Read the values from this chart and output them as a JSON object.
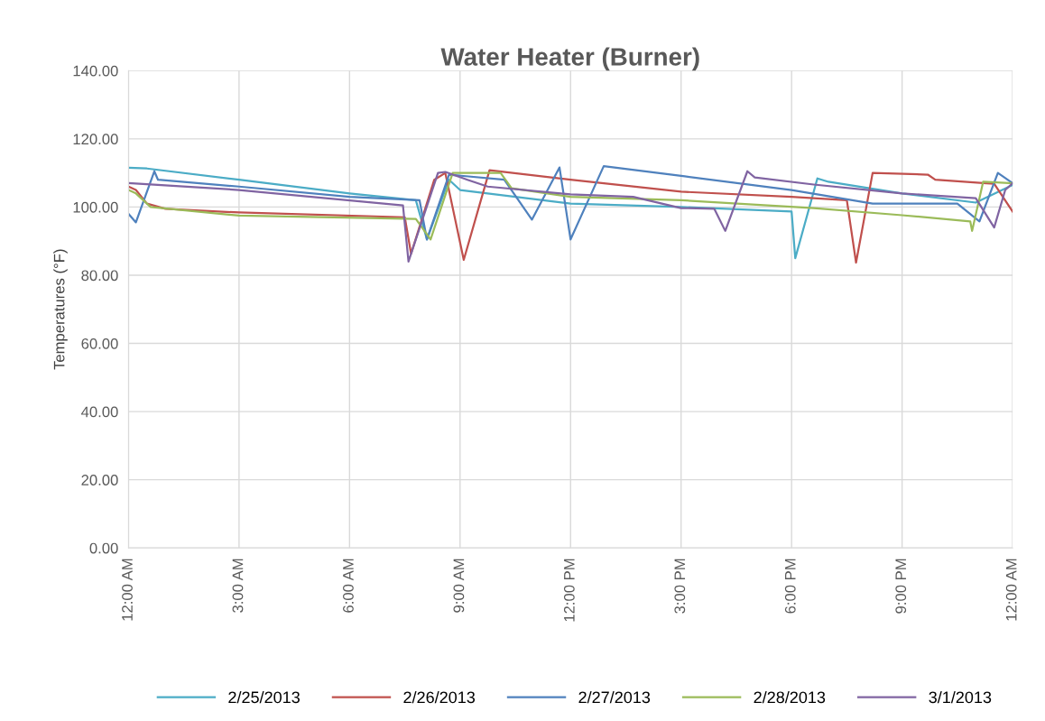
{
  "chart_data": {
    "type": "line",
    "title": "Water Heater (Burner)",
    "ylabel": "Temperatures (°F)",
    "xlim": [
      0,
      24
    ],
    "xticks": [
      {
        "value": 0,
        "label": "12:00 AM"
      },
      {
        "value": 3,
        "label": "3:00 AM"
      },
      {
        "value": 6,
        "label": "6:00 AM"
      },
      {
        "value": 9,
        "label": "9:00 AM"
      },
      {
        "value": 12,
        "label": "12:00 PM"
      },
      {
        "value": 15,
        "label": "3:00 PM"
      },
      {
        "value": 18,
        "label": "6:00 PM"
      },
      {
        "value": 21,
        "label": "9:00 PM"
      },
      {
        "value": 24,
        "label": "12:00 AM"
      }
    ],
    "ylim": [
      0,
      140
    ],
    "yticks": [
      {
        "value": 0,
        "label": "0.00"
      },
      {
        "value": 20,
        "label": "20.00"
      },
      {
        "value": 40,
        "label": "40.00"
      },
      {
        "value": 60,
        "label": "60.00"
      },
      {
        "value": 80,
        "label": "80.00"
      },
      {
        "value": 100,
        "label": "100.00"
      },
      {
        "value": 120,
        "label": "120.00"
      },
      {
        "value": 140,
        "label": "140.00"
      }
    ],
    "grid": true,
    "legend": "bottom",
    "marker": "none",
    "line_style": "solid",
    "series": [
      {
        "name": "2/25/2013",
        "color": "#4bacc6",
        "x": [
          0,
          0.5,
          3,
          6,
          7.8,
          8.1,
          8.7,
          9,
          12,
          15,
          18,
          18.1,
          18.7,
          19,
          21,
          23,
          24
        ],
        "values": [
          111.5,
          111.3,
          108,
          104,
          102,
          90.5,
          108,
          105,
          101,
          100,
          98.7,
          85,
          108.4,
          107.4,
          104,
          101.3,
          106.5
        ]
      },
      {
        "name": "2/26/2013",
        "color": "#c0504d",
        "x": [
          0,
          0.2,
          0.5,
          1,
          3,
          7.5,
          7.67,
          8.3,
          8.6,
          9.1,
          9.8,
          12,
          15,
          18,
          19.5,
          19.75,
          20.2,
          21.7,
          21.9,
          23.2,
          23.5,
          24
        ],
        "values": [
          106,
          105,
          101,
          99.5,
          98.4,
          97,
          86.3,
          108,
          110,
          84.5,
          110.8,
          108,
          104.5,
          103,
          102,
          83.7,
          110,
          109.5,
          108,
          107,
          106.8,
          98.7
        ]
      },
      {
        "name": "2/27/2013",
        "color": "#4f81bd",
        "x": [
          0,
          0.2,
          0.7,
          0.8,
          3,
          6,
          7.9,
          8.1,
          8.7,
          10.2,
          10.95,
          11.7,
          12,
          12.9,
          15.1,
          18,
          20.2,
          22.5,
          23.1,
          23.6,
          24
        ],
        "values": [
          98,
          95.5,
          110.5,
          108,
          106,
          103,
          102,
          90.5,
          109.5,
          108,
          96.3,
          111.6,
          90.5,
          112,
          109,
          105,
          101,
          101,
          95.8,
          110,
          107
        ]
      },
      {
        "name": "2/28/2013",
        "color": "#9bbb59",
        "x": [
          0,
          0.2,
          0.6,
          3,
          7.8,
          8.2,
          8.8,
          10.1,
          10.4,
          12,
          15,
          18.6,
          21,
          22.85,
          22.9,
          23.2,
          24
        ],
        "values": [
          105,
          104,
          100,
          97.5,
          96.5,
          90.5,
          110,
          110,
          105.5,
          103,
          102,
          99.7,
          97.6,
          95.8,
          93,
          107.4,
          107
        ]
      },
      {
        "name": "3/1/2013",
        "color": "#8064a2",
        "x": [
          0,
          3,
          7.45,
          7.6,
          8.4,
          8.6,
          9.2,
          9.75,
          12,
          13.7,
          15,
          15.9,
          16.2,
          16.8,
          17,
          18.6,
          21,
          23,
          23.5,
          23.8,
          24
        ],
        "values": [
          107,
          105,
          100.5,
          84,
          110,
          110.3,
          108,
          106,
          103.7,
          103,
          99.7,
          99.5,
          93,
          110.5,
          108.7,
          106.6,
          104,
          102.6,
          94,
          105,
          107
        ]
      }
    ]
  }
}
